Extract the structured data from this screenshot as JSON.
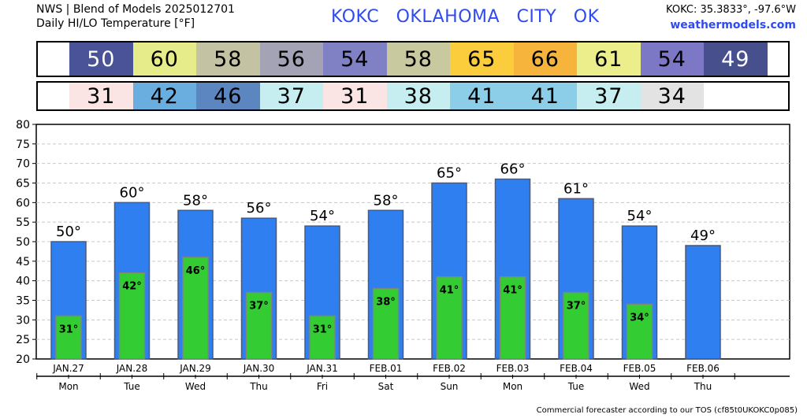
{
  "header": {
    "line1": "NWS | Blend of Models 2025012701",
    "line2": "Daily HI/LO Temperature [°F]",
    "station": "KOKC   OKLAHOMA CITY   OK",
    "coords": "KOKC: 35.3833°, -97.6°W",
    "site": "weathermodels.com"
  },
  "strips": {
    "hi_cells": [
      {
        "text": "50",
        "color": "#4a5397",
        "fg": "#ffffff"
      },
      {
        "text": "60",
        "color": "#e6ec8a",
        "fg": "#000000"
      },
      {
        "text": "58",
        "color": "#c3c3a3",
        "fg": "#000000"
      },
      {
        "text": "56",
        "color": "#a3a3b5",
        "fg": "#000000"
      },
      {
        "text": "54",
        "color": "#8080c4",
        "fg": "#000000"
      },
      {
        "text": "58",
        "color": "#c9c9a0",
        "fg": "#000000"
      },
      {
        "text": "65",
        "color": "#fbcd3d",
        "fg": "#000000"
      },
      {
        "text": "66",
        "color": "#f6b43c",
        "fg": "#000000"
      },
      {
        "text": "61",
        "color": "#ecee8b",
        "fg": "#000000"
      },
      {
        "text": "54",
        "color": "#7d78c5",
        "fg": "#000000"
      },
      {
        "text": "49",
        "color": "#484f8d",
        "fg": "#ffffff"
      }
    ],
    "lo_cells": [
      {
        "text": "31",
        "color": "#fbe4e4",
        "fg": "#000000"
      },
      {
        "text": "42",
        "color": "#6aaee0",
        "fg": "#000000"
      },
      {
        "text": "46",
        "color": "#5b86c0",
        "fg": "#000000"
      },
      {
        "text": "37",
        "color": "#c6edf0",
        "fg": "#000000"
      },
      {
        "text": "31",
        "color": "#fbe4e4",
        "fg": "#000000"
      },
      {
        "text": "38",
        "color": "#c6edf0",
        "fg": "#000000"
      },
      {
        "text": "41",
        "color": "#8ccde8",
        "fg": "#000000"
      },
      {
        "text": "41",
        "color": "#8ccde8",
        "fg": "#000000"
      },
      {
        "text": "37",
        "color": "#c6edf0",
        "fg": "#000000"
      },
      {
        "text": "34",
        "color": "#e3e3e3",
        "fg": "#000000"
      }
    ]
  },
  "chart_data": {
    "type": "bar",
    "categories": [
      "JAN.27",
      "JAN.28",
      "JAN.29",
      "JAN.30",
      "JAN.31",
      "FEB.01",
      "FEB.02",
      "FEB.03",
      "FEB.04",
      "FEB.05",
      "FEB.06"
    ],
    "weekdays": [
      "Mon",
      "Tue",
      "Wed",
      "Thu",
      "Fri",
      "Sat",
      "Sun",
      "Mon",
      "Tue",
      "Wed",
      "Thu"
    ],
    "series": [
      {
        "values": [
          50,
          60,
          58,
          56,
          54,
          58,
          65,
          66,
          61,
          54,
          49
        ],
        "labels": [
          "50°",
          "60°",
          "58°",
          "56°",
          "54°",
          "58°",
          "65°",
          "66°",
          "61°",
          "54°",
          "49°"
        ],
        "color": "#2f7ff0"
      },
      {
        "values": [
          31,
          42,
          46,
          37,
          31,
          38,
          41,
          41,
          37,
          34,
          null
        ],
        "labels": [
          "31°",
          "42°",
          "46°",
          "37°",
          "31°",
          "38°",
          "41°",
          "41°",
          "37°",
          "34°",
          ""
        ],
        "color": "#33cc33"
      }
    ],
    "ylim": [
      20,
      80
    ],
    "yticks": [
      "20",
      "25",
      "30",
      "35",
      "40",
      "45",
      "50",
      "55",
      "60",
      "65",
      "70",
      "75",
      "80"
    ],
    "grid": true
  },
  "footer": "Commercial forecaster according to our TOS (cf85t0UKOKC0p085)"
}
